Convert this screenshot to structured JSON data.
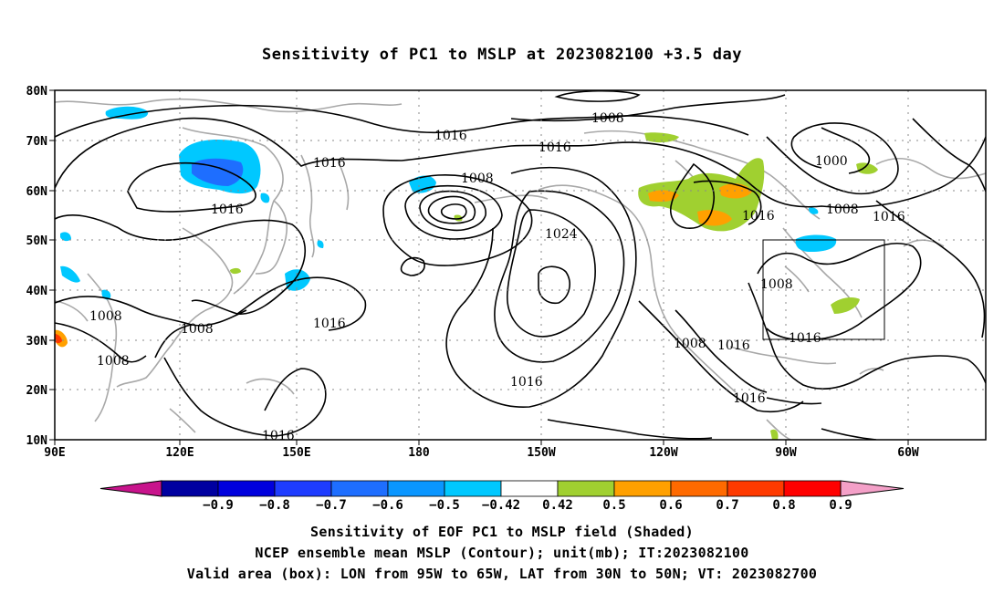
{
  "title": "Sensitivity of PC1 to MSLP at 2023082100 +3.5 day",
  "lat_labels": [
    "80N",
    "70N",
    "60N",
    "50N",
    "40N",
    "30N",
    "20N",
    "10N"
  ],
  "lon_labels": [
    "90E",
    "120E",
    "150E",
    "180",
    "150W",
    "120W",
    "90W",
    "60W"
  ],
  "contour_labels": [
    "1008",
    "1016",
    "1016",
    "1016",
    "1016",
    "1008",
    "1024",
    "1016",
    "1016",
    "1000",
    "1008",
    "1016",
    "1008",
    "1008",
    "1008",
    "1008",
    "1016",
    "1016",
    "1016",
    "1016",
    "1008"
  ],
  "colorbar": {
    "labels": [
      "-0.9",
      "-0.8",
      "-0.7",
      "-0.6",
      "-0.5",
      "-0.42",
      "0.42",
      "0.5",
      "0.6",
      "0.7",
      "0.8",
      "0.9"
    ],
    "colors": [
      "#0000a0",
      "#0000dd",
      "#1e3cff",
      "#1e6eff",
      "#0a96ff",
      "#00c8ff",
      "#ffffff",
      "#a0d030",
      "#ffa000",
      "#ff6a00",
      "#ff3a00",
      "#ff0000"
    ],
    "low_extend_color": "#c8148c",
    "high_extend_color": "#f4a0c8"
  },
  "captions": [
    "Sensitivity of EOF PC1 to MSLP field (Shaded)",
    "NCEP ensemble mean MSLP (Contour); unit(mb); IT:2023082100",
    "Valid area (box): LON from 95W to 65W, LAT from 30N to 50N; VT: 2023082700"
  ]
}
